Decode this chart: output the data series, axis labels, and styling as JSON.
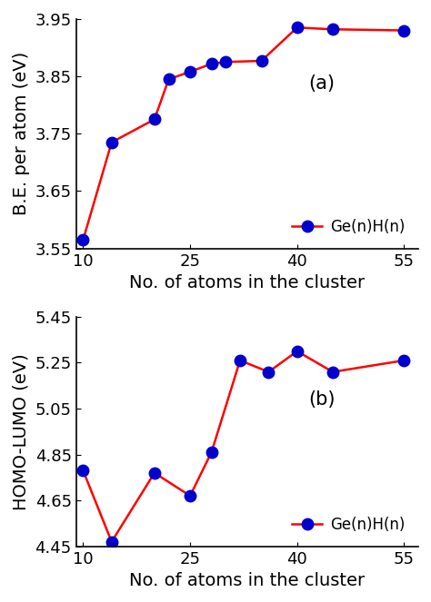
{
  "x_values": [
    10,
    14,
    20,
    22,
    25,
    28,
    30,
    35,
    40,
    45,
    55
  ],
  "be_values": [
    3.565,
    3.735,
    3.775,
    3.845,
    3.858,
    3.872,
    3.875,
    3.877,
    3.935,
    3.932,
    3.93
  ],
  "hl_x_values": [
    10,
    14,
    20,
    25,
    28,
    32,
    36,
    40,
    45,
    55
  ],
  "hl_values": [
    4.78,
    4.47,
    4.77,
    4.67,
    4.86,
    5.26,
    5.21,
    5.3,
    5.21,
    5.26
  ],
  "line_color": "#ff0000",
  "marker_color": "#0000cd",
  "marker_style": "o",
  "marker_size": 9,
  "line_width": 1.8,
  "label": "Ge(n)H(n)",
  "label_a": "(a)",
  "label_b": "(b)",
  "xlabel": "No. of atoms in the cluster",
  "ylabel_a": "B.E. per atom (eV)",
  "ylabel_b": "HOMO-LUMO (eV)",
  "ylim_a": [
    3.55,
    3.95
  ],
  "ylim_b": [
    4.45,
    5.45
  ],
  "xlim": [
    9,
    57
  ],
  "xticks": [
    10,
    25,
    40,
    55
  ],
  "yticks_a": [
    3.55,
    3.65,
    3.75,
    3.85,
    3.95
  ],
  "yticks_b": [
    4.45,
    4.65,
    4.85,
    5.05,
    5.25,
    5.45
  ],
  "xlabel_fontsize": 14,
  "ylabel_fontsize": 14,
  "tick_fontsize": 13,
  "legend_fontsize": 12,
  "label_fontsize": 15,
  "background_color": "#ffffff"
}
